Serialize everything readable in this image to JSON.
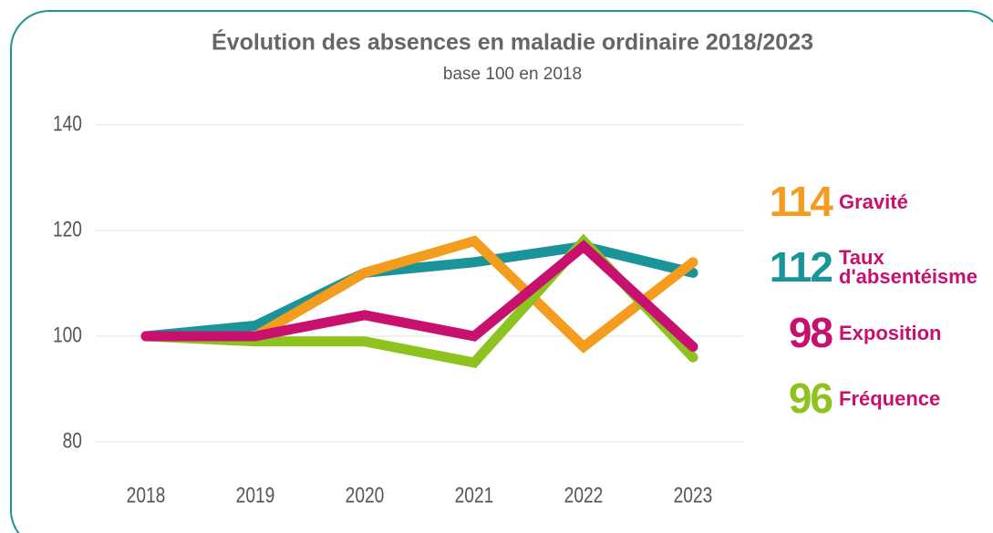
{
  "chart_data": {
    "type": "line",
    "title": "Évolution des absences en maladie ordinaire 2018/2023",
    "subtitle": "base 100 en 2018",
    "categories": [
      "2018",
      "2019",
      "2020",
      "2021",
      "2022",
      "2023"
    ],
    "series": [
      {
        "name": "Gravité",
        "color": "#f39c1e",
        "values": [
          100,
          100,
          112,
          118,
          98,
          114
        ]
      },
      {
        "name": "Taux d'absentéisme",
        "color": "#1a9399",
        "values": [
          100,
          102,
          112,
          114,
          117,
          112
        ]
      },
      {
        "name": "Exposition",
        "color": "#c8106e",
        "values": [
          100,
          100,
          104,
          100,
          117,
          98
        ]
      },
      {
        "name": "Fréquence",
        "color": "#8dc21f",
        "values": [
          100,
          99,
          99,
          95,
          118,
          96
        ]
      }
    ],
    "ylim": [
      80,
      140
    ],
    "yticks": [
      80,
      100,
      120,
      140
    ],
    "grid": true
  }
}
